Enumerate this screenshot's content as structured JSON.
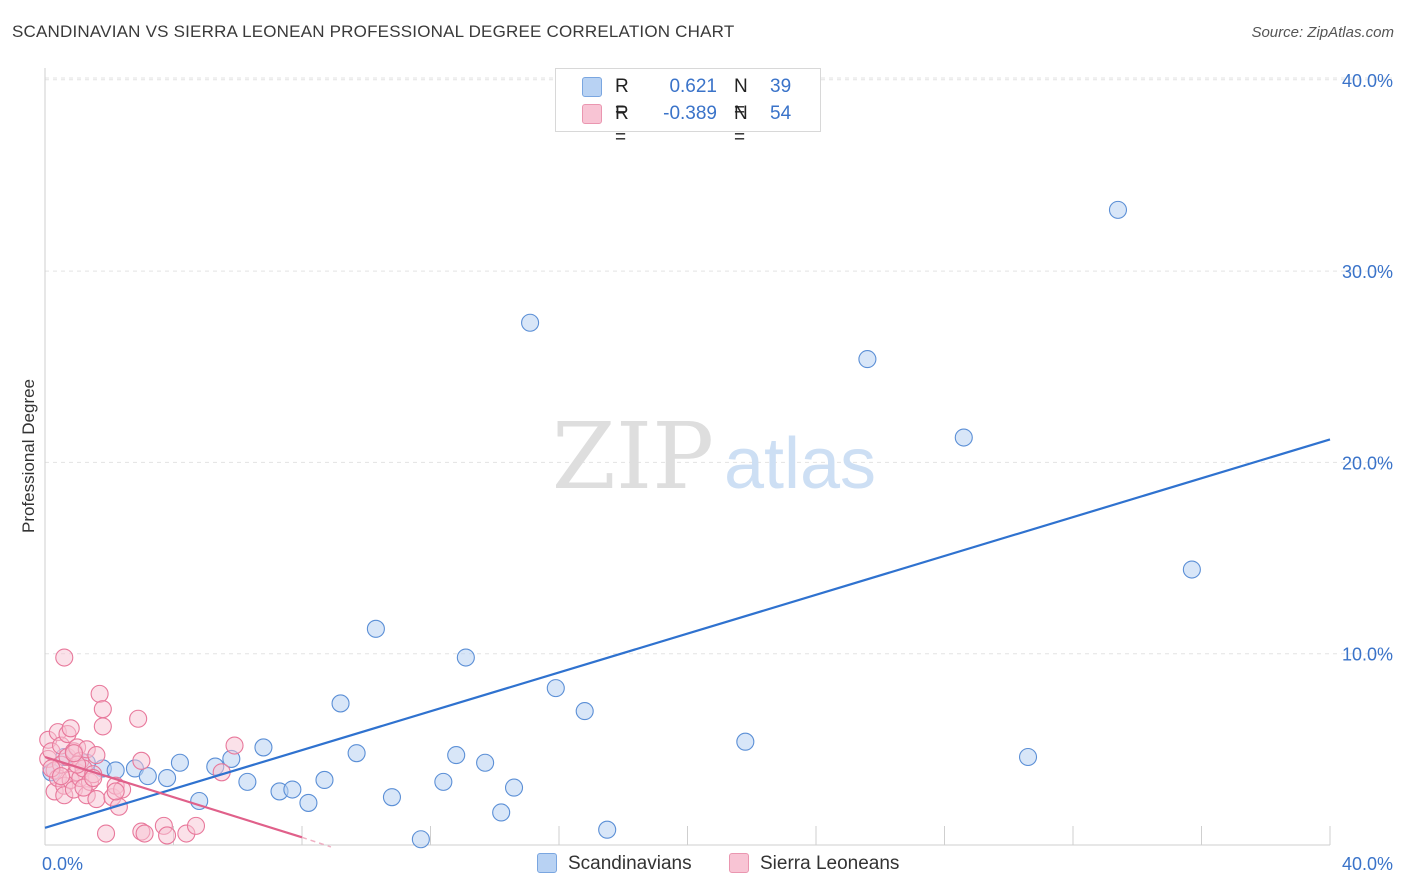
{
  "header": {
    "title": "SCANDINAVIAN VS SIERRA LEONEAN PROFESSIONAL DEGREE CORRELATION CHART",
    "source": "Source: ZipAtlas.com"
  },
  "legend": {
    "rows": [
      {
        "r_label": "R =",
        "r_value": "0.621",
        "n_label": "N =",
        "n_value": "39"
      },
      {
        "r_label": "R =",
        "r_value": "-0.389",
        "n_label": "N =",
        "n_value": "54"
      }
    ]
  },
  "bottom_legend": {
    "series_a": "Scandinavians",
    "series_b": "Sierra Leoneans"
  },
  "watermark": {
    "zip": "ZIP",
    "atlas": "atlas"
  },
  "colors": {
    "blue_fill": "#b8d2f3",
    "blue_stroke": "#5b8fd6",
    "blue_line": "#2f72cf",
    "pink_fill": "#f8c4d4",
    "pink_stroke": "#e8789b",
    "pink_line": "#e0608a",
    "axis_label": "#3a73c9"
  },
  "chart_data": {
    "type": "scatter",
    "title": "SCANDINAVIAN VS SIERRA LEONEAN PROFESSIONAL DEGREE CORRELATION CHART",
    "xlabel": "",
    "ylabel": "Professional Degree",
    "xlim": [
      0,
      40
    ],
    "ylim": [
      0,
      41
    ],
    "x_tick_labels": [
      "0.0%",
      "40.0%"
    ],
    "y_ticks": [
      10,
      20,
      30,
      40
    ],
    "y_tick_labels": [
      "10.0%",
      "20.0%",
      "30.0%",
      "40.0%"
    ],
    "grid": true,
    "series": [
      {
        "name": "Scandinavians",
        "r": 0.621,
        "n": 39,
        "points": [
          [
            0.2,
            3.8
          ],
          [
            0.6,
            4.6
          ],
          [
            1.3,
            4.3
          ],
          [
            1.8,
            4.0
          ],
          [
            2.2,
            3.9
          ],
          [
            2.8,
            4.0
          ],
          [
            3.2,
            3.6
          ],
          [
            3.8,
            3.5
          ],
          [
            4.2,
            4.3
          ],
          [
            4.8,
            2.3
          ],
          [
            5.3,
            4.1
          ],
          [
            5.8,
            4.5
          ],
          [
            6.3,
            3.3
          ],
          [
            6.8,
            5.1
          ],
          [
            7.3,
            2.8
          ],
          [
            7.7,
            2.9
          ],
          [
            8.2,
            2.2
          ],
          [
            8.7,
            3.4
          ],
          [
            9.2,
            7.4
          ],
          [
            9.7,
            4.8
          ],
          [
            10.3,
            11.3
          ],
          [
            10.8,
            2.5
          ],
          [
            11.7,
            0.3
          ],
          [
            12.4,
            3.3
          ],
          [
            12.8,
            4.7
          ],
          [
            13.1,
            9.8
          ],
          [
            13.7,
            4.3
          ],
          [
            14.2,
            1.7
          ],
          [
            14.6,
            3.0
          ],
          [
            15.1,
            27.3
          ],
          [
            15.9,
            8.2
          ],
          [
            16.8,
            7.0
          ],
          [
            17.5,
            0.8
          ],
          [
            21.8,
            5.4
          ],
          [
            25.6,
            25.4
          ],
          [
            28.6,
            21.3
          ],
          [
            30.6,
            4.6
          ],
          [
            33.4,
            33.2
          ],
          [
            35.7,
            14.4
          ]
        ],
        "trend": {
          "x": [
            0,
            40
          ],
          "y": [
            0.9,
            21.2
          ]
        }
      },
      {
        "name": "Sierra Leoneans",
        "r": -0.389,
        "n": 54,
        "points": [
          [
            0.1,
            5.5
          ],
          [
            0.1,
            4.5
          ],
          [
            0.2,
            4.9
          ],
          [
            0.3,
            3.9
          ],
          [
            0.3,
            2.8
          ],
          [
            0.4,
            5.9
          ],
          [
            0.4,
            3.5
          ],
          [
            0.5,
            5.2
          ],
          [
            0.5,
            4.2
          ],
          [
            0.6,
            3.1
          ],
          [
            0.6,
            2.6
          ],
          [
            0.6,
            9.8
          ],
          [
            0.7,
            4.6
          ],
          [
            0.7,
            5.8
          ],
          [
            0.8,
            3.4
          ],
          [
            0.8,
            6.1
          ],
          [
            0.9,
            4.9
          ],
          [
            0.9,
            2.9
          ],
          [
            1.0,
            3.8
          ],
          [
            1.0,
            5.1
          ],
          [
            1.1,
            3.5
          ],
          [
            1.1,
            4.4
          ],
          [
            1.2,
            4.0
          ],
          [
            1.3,
            2.6
          ],
          [
            1.3,
            5.0
          ],
          [
            1.4,
            3.3
          ],
          [
            1.5,
            3.7
          ],
          [
            1.6,
            2.4
          ],
          [
            1.6,
            4.7
          ],
          [
            1.7,
            7.9
          ],
          [
            1.8,
            6.2
          ],
          [
            1.8,
            7.1
          ],
          [
            1.9,
            0.6
          ],
          [
            2.1,
            2.5
          ],
          [
            2.2,
            3.1
          ],
          [
            2.3,
            2.0
          ],
          [
            2.4,
            2.9
          ],
          [
            2.9,
            6.6
          ],
          [
            3.0,
            4.4
          ],
          [
            3.0,
            0.7
          ],
          [
            3.7,
            1.0
          ],
          [
            3.8,
            0.5
          ],
          [
            4.4,
            0.6
          ],
          [
            4.7,
            1.0
          ],
          [
            5.5,
            3.8
          ],
          [
            5.9,
            5.2
          ],
          [
            0.2,
            4.0
          ],
          [
            0.5,
            3.6
          ],
          [
            1.0,
            4.2
          ],
          [
            1.2,
            3.0
          ],
          [
            2.2,
            2.8
          ],
          [
            3.1,
            0.6
          ],
          [
            1.5,
            3.5
          ],
          [
            0.9,
            4.8
          ]
        ],
        "trend": {
          "x": [
            0,
            8
          ],
          "y": [
            4.6,
            0.4
          ]
        },
        "trend_extension": {
          "x": [
            8,
            8.9
          ],
          "y": [
            0.4,
            -0.1
          ]
        }
      }
    ]
  }
}
